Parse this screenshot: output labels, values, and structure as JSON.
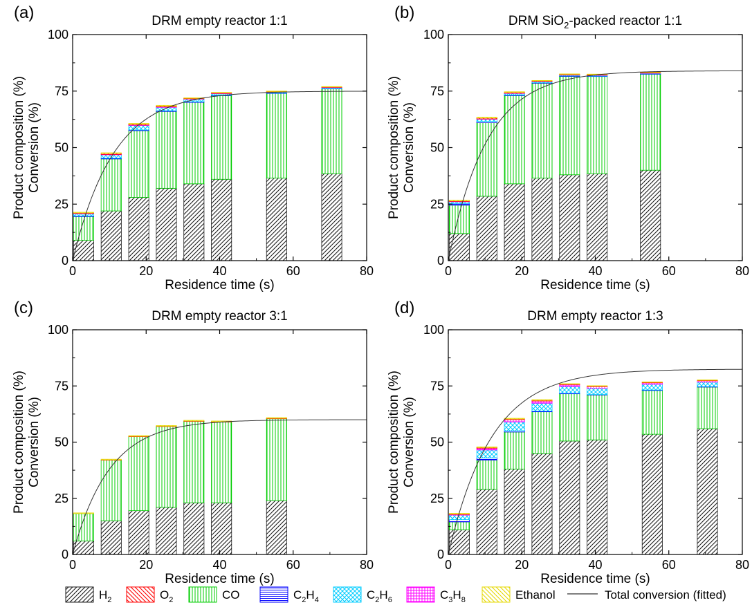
{
  "legend": [
    {
      "key": "h2",
      "base": "H",
      "sub": "2",
      "pattern": "diag-rev",
      "color": "#1a1a1a"
    },
    {
      "key": "o2",
      "base": "O",
      "sub": "2",
      "pattern": "diag",
      "color": "#ff0000"
    },
    {
      "key": "co",
      "base": "CO",
      "sub": "",
      "pattern": "vert",
      "color": "#00cc00"
    },
    {
      "key": "c2h4",
      "base": "C",
      "sub": "2",
      "base2": "H",
      "sub2": "4",
      "pattern": "horiz",
      "color": "#0000ff"
    },
    {
      "key": "c2h6",
      "base": "C",
      "sub": "2",
      "base2": "H",
      "sub2": "6",
      "pattern": "cross",
      "color": "#00ccff"
    },
    {
      "key": "c3h8",
      "base": "C",
      "sub": "3",
      "base2": "H",
      "sub2": "8",
      "pattern": "grid",
      "color": "#ff00ff"
    },
    {
      "key": "ethanol",
      "base": "Ethanol",
      "sub": "",
      "pattern": "diag",
      "color": "#e6d800"
    },
    {
      "key": "fit",
      "base": "Total conversion (fitted)",
      "sub": "",
      "pattern": "line",
      "color": "#333333"
    }
  ],
  "chart_data": [
    {
      "type": "bar",
      "panel": "(a)",
      "title": "DRM empty reactor 1:1",
      "title_parts": [],
      "xlabel": "Residence time (s)",
      "ylabel_lines": [
        "Product composition (%)",
        "Conversion (%)"
      ],
      "xlim": [
        0,
        80
      ],
      "ylim": [
        0,
        100
      ],
      "xticks": [
        0,
        20,
        40,
        60,
        80
      ],
      "yticks": [
        0,
        25,
        50,
        75,
        100
      ],
      "bar_width": 5.5,
      "x": [
        3,
        10.5,
        18,
        25.5,
        33,
        40.5,
        55.5,
        70.5
      ],
      "series": [
        {
          "key": "h2",
          "values": [
            9,
            22,
            28,
            32,
            34,
            36,
            36.5,
            38.5
          ]
        },
        {
          "key": "co",
          "values": [
            10.5,
            23,
            29.5,
            34,
            36,
            37,
            37.5,
            37.5
          ]
        },
        {
          "key": "c2h4",
          "values": [
            0.3,
            0.3,
            0.3,
            0.3,
            0.3,
            0.2,
            0.1,
            0.1
          ]
        },
        {
          "key": "c2h6",
          "values": [
            1,
            1.5,
            2,
            1.5,
            1.2,
            0.7,
            0.5,
            0.5
          ]
        },
        {
          "key": "c3h8",
          "values": [
            0.1,
            0.2,
            0.2,
            0.2,
            0.1,
            0.1,
            0.1,
            0.1
          ]
        },
        {
          "key": "o2",
          "values": [
            0.2,
            0.4,
            0.4,
            0.4,
            0.2,
            0.2,
            0.1,
            0.1
          ]
        },
        {
          "key": "ethanol",
          "values": [
            0.3,
            0.3,
            0.3,
            0.3,
            0.2,
            0.2,
            0.2,
            0.2
          ]
        }
      ],
      "fit": {
        "a": 75,
        "k": 0.09,
        "t0": 0
      }
    },
    {
      "type": "bar",
      "panel": "(b)",
      "title": "",
      "title_parts": [
        "DRM SiO",
        "2",
        "-packed reactor 1:1"
      ],
      "xlabel": "Residence time (s)",
      "ylabel_lines": [
        "Product composition (%)",
        "Conversion (%)"
      ],
      "xlim": [
        0,
        80
      ],
      "ylim": [
        0,
        100
      ],
      "xticks": [
        0,
        20,
        40,
        60,
        80
      ],
      "yticks": [
        0,
        25,
        50,
        75,
        100
      ],
      "bar_width": 5.5,
      "x": [
        3,
        10.5,
        18,
        25.5,
        33,
        40.5,
        55
      ],
      "series": [
        {
          "key": "h2",
          "values": [
            12,
            28.5,
            34,
            36.5,
            38,
            38.5,
            40
          ]
        },
        {
          "key": "co",
          "values": [
            12.5,
            32.5,
            39,
            42,
            43.5,
            43,
            42.5
          ]
        },
        {
          "key": "c2h4",
          "values": [
            0.8,
            0.6,
            0.3,
            0.2,
            0.2,
            0.1,
            0.1
          ]
        },
        {
          "key": "c2h6",
          "values": [
            0.8,
            1,
            0.7,
            0.5,
            0.4,
            0.4,
            0.3
          ]
        },
        {
          "key": "c3h8",
          "values": [
            0.1,
            0.1,
            0.1,
            0.1,
            0.1,
            0.1,
            0.1
          ]
        },
        {
          "key": "o2",
          "values": [
            0.2,
            0.4,
            0.3,
            0.2,
            0.2,
            0.2,
            0.2
          ]
        },
        {
          "key": "ethanol",
          "values": [
            0.4,
            0.4,
            0.3,
            0.2,
            0.2,
            0.2,
            0.2
          ]
        }
      ],
      "fit": {
        "a": 84,
        "k": 0.095,
        "t0": 0
      }
    },
    {
      "type": "bar",
      "panel": "(c)",
      "title": "DRM empty reactor 3:1",
      "title_parts": [],
      "xlabel": "Residence time (s)",
      "ylabel_lines": [
        "Product composition (%)",
        "Conversion (%)"
      ],
      "xlim": [
        0,
        80
      ],
      "ylim": [
        0,
        100
      ],
      "xticks": [
        0,
        20,
        40,
        60,
        80
      ],
      "yticks": [
        0,
        25,
        50,
        75,
        100
      ],
      "bar_width": 5.5,
      "x": [
        3,
        10.5,
        18,
        25.5,
        33,
        40.5,
        55.5
      ],
      "series": [
        {
          "key": "h2",
          "values": [
            6,
            15,
            19.5,
            21,
            23,
            23,
            24
          ]
        },
        {
          "key": "co",
          "values": [
            12.2,
            27,
            33,
            36,
            36.3,
            36,
            36.5
          ]
        },
        {
          "key": "c2h4",
          "values": [
            0,
            0,
            0,
            0,
            0,
            0,
            0
          ]
        },
        {
          "key": "c2h6",
          "values": [
            0,
            0,
            0,
            0,
            0,
            0,
            0
          ]
        },
        {
          "key": "c3h8",
          "values": [
            0,
            0,
            0,
            0,
            0,
            0,
            0
          ]
        },
        {
          "key": "o2",
          "values": [
            0,
            0.1,
            0.1,
            0.1,
            0.1,
            0.1,
            0.1
          ]
        },
        {
          "key": "ethanol",
          "values": [
            0.3,
            0.3,
            0.3,
            0.3,
            0.3,
            0.3,
            0.3
          ]
        }
      ],
      "fit": {
        "a": 60,
        "k": 0.1,
        "t0": 0
      }
    },
    {
      "type": "bar",
      "panel": "(d)",
      "title": "DRM empty reactor 1:3",
      "title_parts": [],
      "xlabel": "Residence time (s)",
      "ylabel_lines": [
        "Product composition (%)",
        "Conversion (%)"
      ],
      "xlim": [
        0,
        80
      ],
      "ylim": [
        0,
        100
      ],
      "xticks": [
        0,
        20,
        40,
        60,
        80
      ],
      "yticks": [
        0,
        25,
        50,
        75,
        100
      ],
      "bar_width": 5.5,
      "x": [
        3,
        10.5,
        18,
        25.5,
        33,
        40.5,
        55.5,
        70.5
      ],
      "series": [
        {
          "key": "h2",
          "values": [
            11,
            29,
            38,
            45,
            50.5,
            51,
            53.5,
            56
          ]
        },
        {
          "key": "co",
          "values": [
            3.5,
            13,
            16.5,
            18.5,
            21,
            20,
            19.5,
            18.5
          ]
        },
        {
          "key": "c2h4",
          "values": [
            1,
            1,
            0.5,
            0.3,
            0.3,
            0.2,
            0.2,
            0.2
          ]
        },
        {
          "key": "c2h6",
          "values": [
            2,
            3.5,
            4,
            3.5,
            3,
            2.8,
            2.5,
            2
          ]
        },
        {
          "key": "c3h8",
          "values": [
            0.3,
            0.8,
            1,
            1,
            0.8,
            0.7,
            0.7,
            0.6
          ]
        },
        {
          "key": "o2",
          "values": [
            0.2,
            0.3,
            0.3,
            0.3,
            0.2,
            0.2,
            0.2,
            0.2
          ]
        },
        {
          "key": "ethanol",
          "values": [
            0.3,
            0.3,
            0.3,
            0.3,
            0.2,
            0.2,
            0.2,
            0.2
          ]
        }
      ],
      "fit": {
        "a": 82.5,
        "k": 0.085,
        "t0": 0
      }
    }
  ]
}
